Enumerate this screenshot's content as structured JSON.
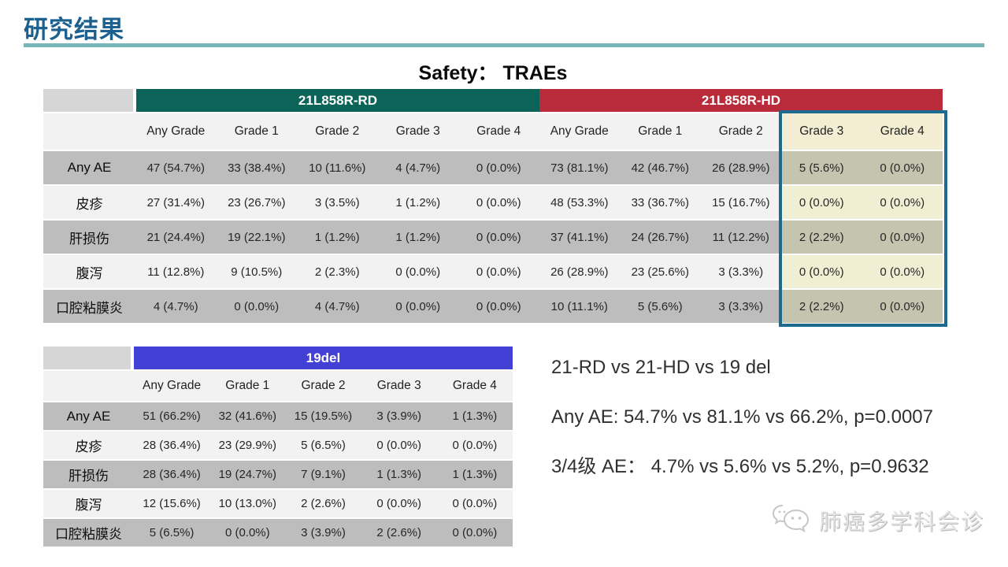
{
  "header": {
    "title": "研究结果",
    "subtitle": "Safety：  TRAEs"
  },
  "colors": {
    "title_blue": "#1c6090",
    "rule_teal": "#79b6b9",
    "group_rd": "#0b6457",
    "group_hd": "#b92a3b",
    "group_19del": "#4340d6",
    "row_dark": "#bdbdbd",
    "row_light": "#f2f2f2",
    "highlight_cream": "#f1efd3",
    "highlight_olive": "#c5c5af",
    "highlight_border": "#1e6a8e"
  },
  "table1": {
    "groups": [
      {
        "label": "21L858R-RD"
      },
      {
        "label": "21L858R-HD"
      }
    ],
    "columns": [
      "Any Grade",
      "Grade 1",
      "Grade 2",
      "Grade 3",
      "Grade 4",
      "Any Grade",
      "Grade 1",
      "Grade 2",
      "Grade 3",
      "Grade 4"
    ],
    "highlight_columns": [
      8,
      9
    ],
    "rows": [
      {
        "label": "Any AE",
        "values": [
          "47 (54.7%)",
          "33 (38.4%)",
          "10 (11.6%)",
          "4 (4.7%)",
          "0 (0.0%)",
          "73 (81.1%)",
          "42 (46.7%)",
          "26 (28.9%)",
          "5 (5.6%)",
          "0 (0.0%)"
        ]
      },
      {
        "label": "皮疹",
        "values": [
          "27 (31.4%)",
          "23 (26.7%)",
          "3 (3.5%)",
          "1 (1.2%)",
          "0 (0.0%)",
          "48 (53.3%)",
          "33 (36.7%)",
          "15 (16.7%)",
          "0 (0.0%)",
          "0 (0.0%)"
        ]
      },
      {
        "label": "肝损伤",
        "values": [
          "21 (24.4%)",
          "19 (22.1%)",
          "1 (1.2%)",
          "1 (1.2%)",
          "0 (0.0%)",
          "37 (41.1%)",
          "24 (26.7%)",
          "11 (12.2%)",
          "2 (2.2%)",
          "0 (0.0%)"
        ]
      },
      {
        "label": "腹泻",
        "values": [
          "11 (12.8%)",
          "9 (10.5%)",
          "2 (2.3%)",
          "0 (0.0%)",
          "0 (0.0%)",
          "26 (28.9%)",
          "23 (25.6%)",
          "3 (3.3%)",
          "0 (0.0%)",
          "0 (0.0%)"
        ]
      },
      {
        "label": "口腔粘膜炎",
        "values": [
          "4 (4.7%)",
          "0 (0.0%)",
          "4 (4.7%)",
          "0 (0.0%)",
          "0 (0.0%)",
          "10 (11.1%)",
          "5 (5.6%)",
          "3 (3.3%)",
          "2 (2.2%)",
          "0 (0.0%)"
        ]
      }
    ]
  },
  "table2": {
    "group": {
      "label": "19del"
    },
    "columns": [
      "Any Grade",
      "Grade 1",
      "Grade 2",
      "Grade 3",
      "Grade 4"
    ],
    "highlight_columns": [],
    "rows": [
      {
        "label": "Any AE",
        "values": [
          "51 (66.2%)",
          "32 (41.6%)",
          "15 (19.5%)",
          "3 (3.9%)",
          "1 (1.3%)"
        ]
      },
      {
        "label": "皮疹",
        "values": [
          "28 (36.4%)",
          "23 (29.9%)",
          "5 (6.5%)",
          "0 (0.0%)",
          "0 (0.0%)"
        ]
      },
      {
        "label": "肝损伤",
        "values": [
          "28 (36.4%)",
          "19 (24.7%)",
          "7 (9.1%)",
          "1 (1.3%)",
          "1 (1.3%)"
        ]
      },
      {
        "label": "腹泻",
        "values": [
          "12 (15.6%)",
          "10 (13.0%)",
          "2 (2.6%)",
          "0 (0.0%)",
          "0 (0.0%)"
        ]
      },
      {
        "label": "口腔粘膜炎",
        "values": [
          "5 (6.5%)",
          "0 (0.0%)",
          "3 (3.9%)",
          "2 (2.6%)",
          "0 (0.0%)"
        ]
      }
    ]
  },
  "summary": {
    "line1": "21-RD vs 21-HD vs 19 del",
    "line2": "Any AE: 54.7% vs 81.1% vs 66.2%, p=0.0007",
    "line3": "3/4级 AE：  4.7% vs 5.6% vs 5.2%, p=0.9632"
  },
  "watermark": {
    "label": "肺癌多学科会诊",
    "icon": "wechat-icon"
  }
}
